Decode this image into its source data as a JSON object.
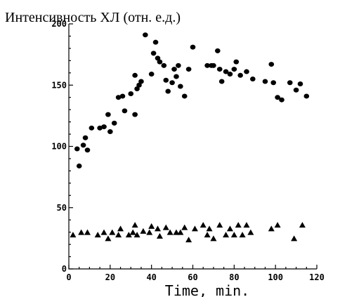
{
  "chart_data": {
    "type": "scatter",
    "title": "Интенсивность ХЛ (отн. е.д.)",
    "xlabel": "Time, min.",
    "ylabel": "",
    "xlim": [
      0,
      120
    ],
    "ylim": [
      0,
      200
    ],
    "x_ticks": [
      "0",
      "20",
      "40",
      "60",
      "80",
      "100",
      "120"
    ],
    "y_ticks": [
      "0",
      "50",
      "100",
      "150",
      "200"
    ],
    "grid": false,
    "series": [
      {
        "marker": "circle",
        "color": "#000000",
        "points": [
          [
            4,
            98
          ],
          [
            5,
            84
          ],
          [
            7,
            101
          ],
          [
            8,
            107
          ],
          [
            9,
            97
          ],
          [
            11,
            115
          ],
          [
            15,
            115
          ],
          [
            17,
            116
          ],
          [
            19,
            126
          ],
          [
            20,
            112
          ],
          [
            22,
            119
          ],
          [
            24,
            140
          ],
          [
            26,
            141
          ],
          [
            27,
            129
          ],
          [
            30,
            143
          ],
          [
            32,
            126
          ],
          [
            32,
            158
          ],
          [
            33,
            147
          ],
          [
            34,
            150
          ],
          [
            35,
            153
          ],
          [
            37,
            191
          ],
          [
            40,
            159
          ],
          [
            41,
            176
          ],
          [
            42,
            185
          ],
          [
            43,
            172
          ],
          [
            44,
            169
          ],
          [
            46,
            166
          ],
          [
            47,
            154
          ],
          [
            48,
            145
          ],
          [
            50,
            152
          ],
          [
            51,
            163
          ],
          [
            52,
            157
          ],
          [
            53,
            166
          ],
          [
            54,
            149
          ],
          [
            56,
            141
          ],
          [
            58,
            163
          ],
          [
            60,
            181
          ],
          [
            67,
            166
          ],
          [
            69,
            166
          ],
          [
            70,
            166
          ],
          [
            72,
            178
          ],
          [
            73,
            163
          ],
          [
            74,
            153
          ],
          [
            76,
            161
          ],
          [
            78,
            159
          ],
          [
            80,
            163
          ],
          [
            81,
            169
          ],
          [
            83,
            158
          ],
          [
            86,
            161
          ],
          [
            89,
            155
          ],
          [
            95,
            153
          ],
          [
            98,
            167
          ],
          [
            99,
            152
          ],
          [
            101,
            140
          ],
          [
            103,
            138
          ],
          [
            107,
            152
          ],
          [
            110,
            146
          ],
          [
            112,
            151
          ],
          [
            115,
            141
          ]
        ]
      },
      {
        "marker": "triangle",
        "color": "#000000",
        "points": [
          [
            2,
            28
          ],
          [
            6,
            30
          ],
          [
            9,
            30
          ],
          [
            14,
            28
          ],
          [
            17,
            30
          ],
          [
            19,
            25
          ],
          [
            21,
            30
          ],
          [
            24,
            28
          ],
          [
            25,
            33
          ],
          [
            29,
            28
          ],
          [
            31,
            30
          ],
          [
            32,
            36
          ],
          [
            33,
            28
          ],
          [
            36,
            31
          ],
          [
            39,
            30
          ],
          [
            40,
            35
          ],
          [
            43,
            33
          ],
          [
            44,
            27
          ],
          [
            47,
            34
          ],
          [
            49,
            30
          ],
          [
            52,
            30
          ],
          [
            54,
            30
          ],
          [
            56,
            34
          ],
          [
            58,
            24
          ],
          [
            61,
            33
          ],
          [
            65,
            36
          ],
          [
            67,
            28
          ],
          [
            68,
            33
          ],
          [
            70,
            25
          ],
          [
            73,
            36
          ],
          [
            76,
            28
          ],
          [
            78,
            33
          ],
          [
            80,
            28
          ],
          [
            82,
            36
          ],
          [
            84,
            28
          ],
          [
            86,
            36
          ],
          [
            88,
            30
          ],
          [
            98,
            33
          ],
          [
            101,
            36
          ],
          [
            109,
            25
          ],
          [
            113,
            36
          ]
        ]
      }
    ]
  }
}
